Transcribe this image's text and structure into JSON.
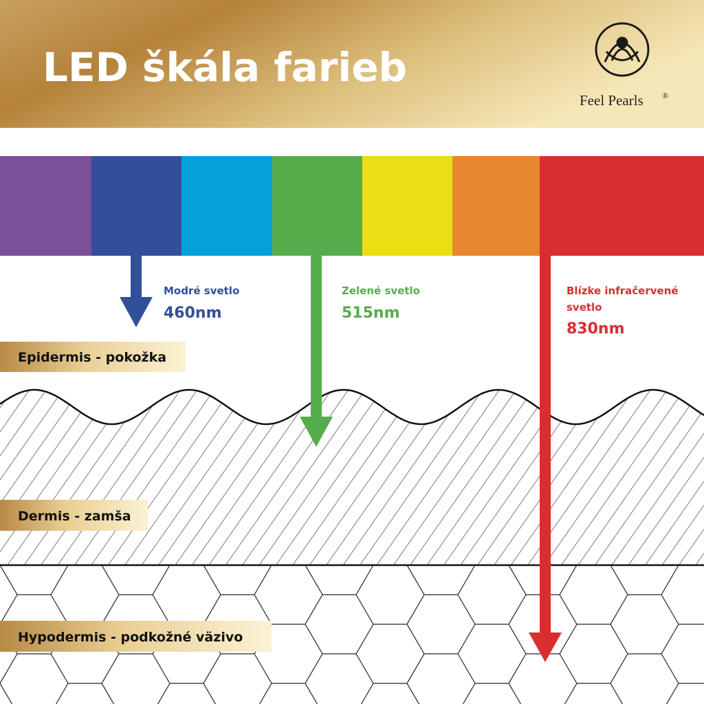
{
  "header": {
    "title": "LED škála farieb",
    "logo": "Feel Pearls",
    "logo_mark": "®"
  },
  "lights": [
    {
      "label_lines": [
        "Modré svetlo"
      ],
      "wavelength": "460nm"
    },
    {
      "label_lines": [
        "Zelené svetlo"
      ],
      "wavelength": "515nm"
    },
    {
      "label_lines": [
        "Blízke infračervené",
        "svetlo"
      ],
      "wavelength": "830nm"
    }
  ],
  "layers": [
    "Epidermis - pokožka",
    "Dermis - zamša",
    "Hypodermis - podkožné väzivo"
  ]
}
